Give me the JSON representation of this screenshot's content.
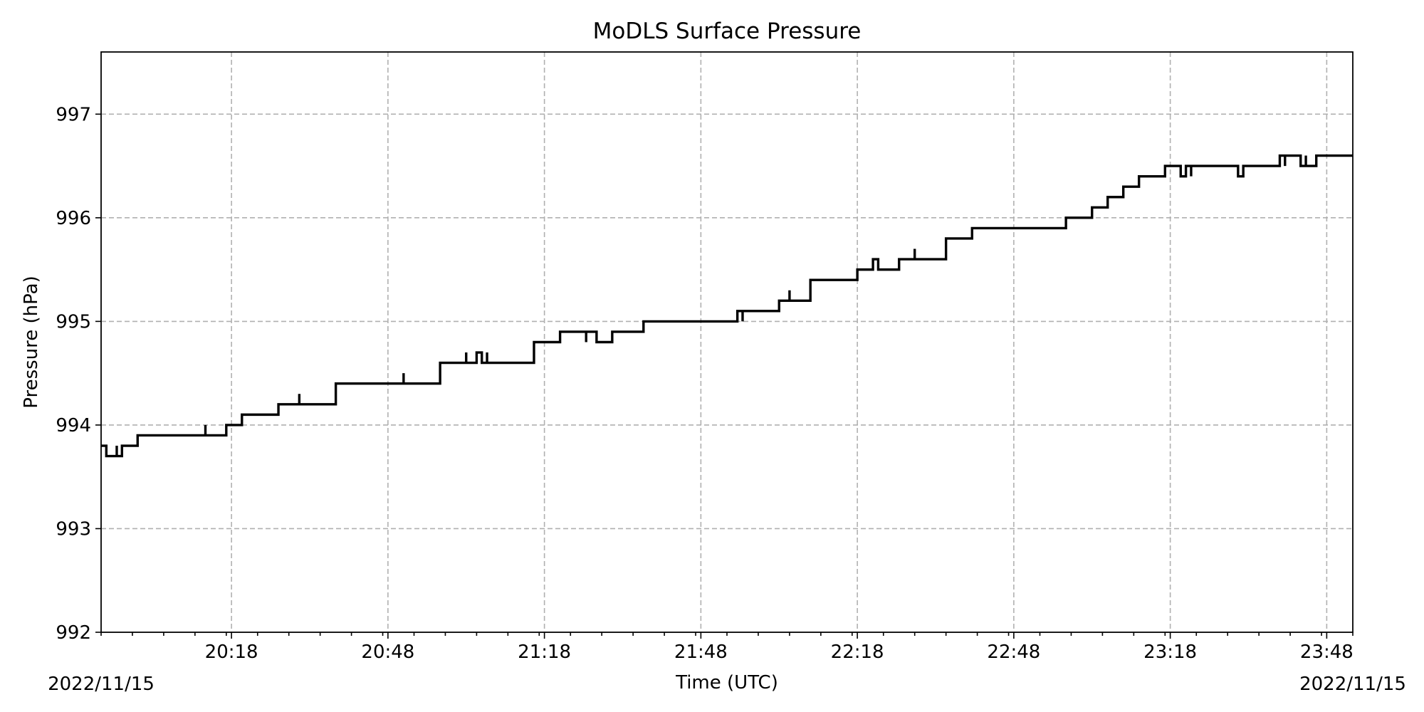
{
  "chart_data": {
    "type": "line",
    "title": "MoDLS Surface Pressure",
    "xlabel": "Time (UTC)",
    "ylabel": "Pressure (hPa)",
    "date_start_label": "2022/11/15",
    "date_end_label": "2022/11/15",
    "xlim": [
      "2022-11-15 19:53",
      "2022-11-15 23:53"
    ],
    "ylim": [
      992,
      997.6
    ],
    "grid": true,
    "step": "post",
    "line_color": "#000000",
    "grid_color": "#b0b0b0",
    "x_ticks": [
      {
        "value": "2022-11-15 20:18",
        "label": "20:18"
      },
      {
        "value": "2022-11-15 20:48",
        "label": "20:48"
      },
      {
        "value": "2022-11-15 21:18",
        "label": "21:18"
      },
      {
        "value": "2022-11-15 21:48",
        "label": "21:48"
      },
      {
        "value": "2022-11-15 22:18",
        "label": "22:18"
      },
      {
        "value": "2022-11-15 22:48",
        "label": "22:48"
      },
      {
        "value": "2022-11-15 23:18",
        "label": "23:18"
      },
      {
        "value": "2022-11-15 23:48",
        "label": "23:48"
      }
    ],
    "y_ticks": [
      {
        "value": 992,
        "label": "992"
      },
      {
        "value": 993,
        "label": "993"
      },
      {
        "value": 994,
        "label": "994"
      },
      {
        "value": 995,
        "label": "995"
      },
      {
        "value": 996,
        "label": "996"
      },
      {
        "value": 997,
        "label": "997"
      }
    ],
    "series": [
      {
        "x": [
          "2022-11-15 19:53",
          "2022-11-15 19:54",
          "2022-11-15 19:56",
          "2022-11-15 19:56",
          "2022-11-15 19:57",
          "2022-11-15 20:00",
          "2022-11-15 20:13",
          "2022-11-15 20:13",
          "2022-11-15 20:17",
          "2022-11-15 20:20",
          "2022-11-15 20:27",
          "2022-11-15 20:31",
          "2022-11-15 20:31",
          "2022-11-15 20:38",
          "2022-11-15 20:51",
          "2022-11-15 20:51",
          "2022-11-15 20:58",
          "2022-11-15 21:03",
          "2022-11-15 21:03",
          "2022-11-15 21:05",
          "2022-11-15 21:06",
          "2022-11-15 21:07",
          "2022-11-15 21:07",
          "2022-11-15 21:16",
          "2022-11-15 21:21",
          "2022-11-15 21:26",
          "2022-11-15 21:26",
          "2022-11-15 21:28",
          "2022-11-15 21:31",
          "2022-11-15 21:37",
          "2022-11-15 21:55",
          "2022-11-15 21:56",
          "2022-11-15 21:56",
          "2022-11-15 22:03",
          "2022-11-15 22:05",
          "2022-11-15 22:05",
          "2022-11-15 22:09",
          "2022-11-15 22:18",
          "2022-11-15 22:21",
          "2022-11-15 22:22",
          "2022-11-15 22:26",
          "2022-11-15 22:29",
          "2022-11-15 22:29",
          "2022-11-15 22:35",
          "2022-11-15 22:40",
          "2022-11-15 22:58",
          "2022-11-15 23:03",
          "2022-11-15 23:06",
          "2022-11-15 23:09",
          "2022-11-15 23:12",
          "2022-11-15 23:17",
          "2022-11-15 23:20",
          "2022-11-15 23:21",
          "2022-11-15 23:22",
          "2022-11-15 23:22",
          "2022-11-15 23:31",
          "2022-11-15 23:32",
          "2022-11-15 23:39",
          "2022-11-15 23:40",
          "2022-11-15 23:40",
          "2022-11-15 23:41",
          "2022-11-15 23:43",
          "2022-11-15 23:44",
          "2022-11-15 23:44",
          "2022-11-15 23:46",
          "2022-11-15 23:53"
        ],
        "y": [
          993.8,
          993.7,
          993.8,
          993.7,
          993.8,
          993.9,
          994.0,
          993.9,
          994.0,
          994.1,
          994.2,
          994.3,
          994.2,
          994.4,
          994.5,
          994.4,
          994.6,
          994.7,
          994.6,
          994.7,
          994.6,
          994.7,
          994.6,
          994.8,
          994.9,
          994.8,
          994.9,
          994.8,
          994.9,
          995.0,
          995.1,
          995.0,
          995.1,
          995.2,
          995.3,
          995.2,
          995.4,
          995.5,
          995.6,
          995.5,
          995.6,
          995.7,
          995.6,
          995.8,
          995.9,
          996.0,
          996.1,
          996.2,
          996.3,
          996.4,
          996.5,
          996.4,
          996.5,
          996.4,
          996.5,
          996.4,
          996.5,
          996.6,
          996.5,
          996.6,
          996.6,
          996.5,
          996.6,
          996.5,
          996.6,
          996.6
        ]
      }
    ]
  }
}
